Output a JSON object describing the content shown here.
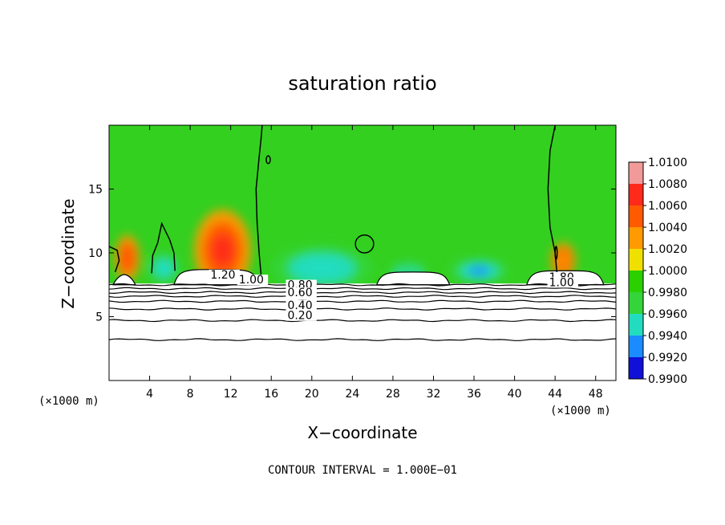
{
  "chart_data": {
    "type": "heatmap",
    "title": "saturation ratio",
    "xlabel": "X−coordinate",
    "ylabel": "Z−coordinate",
    "x_unit": "(×1000 m)",
    "xlim": [
      0,
      50
    ],
    "ylim": [
      0,
      20
    ],
    "x_ticks": [
      "4",
      "8",
      "12",
      "16",
      "20",
      "24",
      "28",
      "32",
      "36",
      "40",
      "44",
      "48"
    ],
    "y_ticks": [
      "5",
      "10",
      "15"
    ],
    "footer": "CONTOUR INTERVAL = 1.000E−01",
    "colorbar": {
      "labels": [
        "1.0100",
        "1.0080",
        "1.0060",
        "1.0040",
        "1.0020",
        "1.0000",
        "0.9980",
        "0.9960",
        "0.9940",
        "0.9920",
        "0.9900"
      ],
      "colors": [
        "#f29a9a",
        "#ff2a1a",
        "#ff5a00",
        "#ff9a00",
        "#f0e000",
        "#2ad000",
        "#34d53a",
        "#22dcc0",
        "#1a8cff",
        "#1010d8",
        "#5a0890"
      ]
    },
    "contour_labels": [
      {
        "text": "1.20",
        "x": 10.0,
        "z": 8.0
      },
      {
        "text": "1.00",
        "x": 12.8,
        "z": 7.6
      },
      {
        "text": "0.80",
        "x": 17.6,
        "z": 7.2
      },
      {
        "text": "0.60",
        "x": 17.6,
        "z": 6.6
      },
      {
        "text": "0.40",
        "x": 17.6,
        "z": 5.6
      },
      {
        "text": "0.20",
        "x": 17.6,
        "z": 4.8
      },
      {
        "text": "1.80",
        "x": 43.4,
        "z": 7.8
      },
      {
        "text": "1.00",
        "x": 43.4,
        "z": 7.4
      }
    ],
    "contour_levels_z": [
      3.2,
      4.7,
      5.6,
      6.2,
      6.6,
      6.9,
      7.2,
      7.5
    ],
    "features": [
      {
        "kind": "supersat",
        "x": 11.2,
        "z": 10.2,
        "sx": 2.8,
        "sz": 3.2,
        "value": 1.0065
      },
      {
        "kind": "supersat",
        "x": 1.8,
        "z": 9.6,
        "sx": 1.2,
        "sz": 1.8,
        "value": 1.004
      },
      {
        "kind": "supersat",
        "x": 44.8,
        "z": 9.4,
        "sx": 1.2,
        "sz": 1.4,
        "value": 1.003
      },
      {
        "kind": "subsat",
        "x": 5.4,
        "z": 8.8,
        "sx": 1.6,
        "sz": 1.2,
        "value": 0.994
      },
      {
        "kind": "subsat",
        "x": 21.0,
        "z": 8.8,
        "sx": 5.0,
        "sz": 1.8,
        "value": 0.995
      },
      {
        "kind": "subsat",
        "x": 36.5,
        "z": 8.6,
        "sx": 3.0,
        "sz": 1.0,
        "value": 0.993
      },
      {
        "kind": "subsat",
        "x": 29.5,
        "z": 8.4,
        "sx": 2.0,
        "sz": 0.9,
        "value": 0.9965
      }
    ]
  }
}
